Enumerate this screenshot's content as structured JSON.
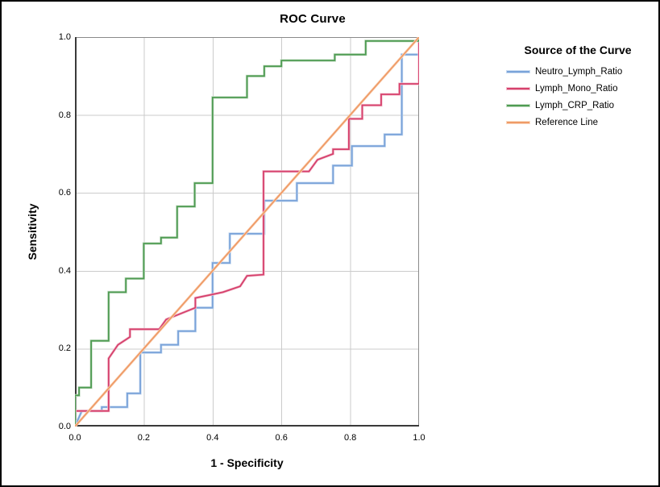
{
  "figure": {
    "title": "ROC Curve"
  },
  "axes": {
    "x": {
      "title": "1 - Specificity",
      "range": [
        0,
        1
      ],
      "ticks": [
        0,
        0.2,
        0.4,
        0.6,
        0.8,
        1
      ],
      "tick_labels": [
        "0.0",
        "0.2",
        "0.4",
        "0.6",
        "0.8",
        "1.0"
      ]
    },
    "y": {
      "title": "Sensitivity",
      "range": [
        0,
        1
      ],
      "ticks": [
        0,
        0.2,
        0.4,
        0.6,
        0.8,
        1
      ],
      "tick_labels": [
        "0.0",
        "0.2",
        "0.4",
        "0.6",
        "0.8",
        "1.0"
      ]
    }
  },
  "legend": {
    "title": "Source of the Curve"
  },
  "colors": {
    "background": "#ffffff",
    "outer_border": "#000000",
    "gridline": "#cbcbcb",
    "frame": "#8a8a8a",
    "axis": "#3a3a3a",
    "text": "#000000"
  },
  "chart_data": {
    "type": "line",
    "subtype": "roc-step-curves",
    "title": "ROC Curve",
    "xlabel": "1 - Specificity",
    "ylabel": "Sensitivity",
    "xlim": [
      0,
      1
    ],
    "ylim": [
      0,
      1
    ],
    "grid": true,
    "grid_interval": 0.2,
    "legend_position": "right",
    "series": [
      {
        "name": "Neutro_Lymph_Ratio",
        "color": "#7aa3d9",
        "halo": "#c7daf1",
        "points": [
          [
            0,
            0
          ],
          [
            0.02,
            0.04
          ],
          [
            0.078,
            0.04
          ],
          [
            0.078,
            0.05
          ],
          [
            0.152,
            0.05
          ],
          [
            0.152,
            0.085
          ],
          [
            0.19,
            0.085
          ],
          [
            0.19,
            0.19
          ],
          [
            0.25,
            0.19
          ],
          [
            0.25,
            0.21
          ],
          [
            0.3,
            0.21
          ],
          [
            0.3,
            0.245
          ],
          [
            0.35,
            0.245
          ],
          [
            0.35,
            0.305
          ],
          [
            0.4,
            0.305
          ],
          [
            0.4,
            0.42
          ],
          [
            0.45,
            0.42
          ],
          [
            0.45,
            0.495
          ],
          [
            0.55,
            0.495
          ],
          [
            0.55,
            0.58
          ],
          [
            0.645,
            0.58
          ],
          [
            0.645,
            0.625
          ],
          [
            0.75,
            0.625
          ],
          [
            0.75,
            0.67
          ],
          [
            0.805,
            0.67
          ],
          [
            0.805,
            0.72
          ],
          [
            0.9,
            0.72
          ],
          [
            0.9,
            0.75
          ],
          [
            0.95,
            0.75
          ],
          [
            0.95,
            0.955
          ],
          [
            1,
            0.955
          ],
          [
            1,
            1
          ]
        ]
      },
      {
        "name": "Lymph_Mono_Ratio",
        "color": "#d6406c",
        "halo": "#f2c1cf",
        "points": [
          [
            0,
            0
          ],
          [
            0,
            0.04
          ],
          [
            0.098,
            0.04
          ],
          [
            0.098,
            0.175
          ],
          [
            0.125,
            0.21
          ],
          [
            0.16,
            0.23
          ],
          [
            0.16,
            0.25
          ],
          [
            0.245,
            0.25
          ],
          [
            0.265,
            0.275
          ],
          [
            0.35,
            0.305
          ],
          [
            0.35,
            0.33
          ],
          [
            0.43,
            0.345
          ],
          [
            0.48,
            0.36
          ],
          [
            0.5,
            0.387
          ],
          [
            0.548,
            0.39
          ],
          [
            0.548,
            0.655
          ],
          [
            0.68,
            0.655
          ],
          [
            0.705,
            0.685
          ],
          [
            0.75,
            0.7
          ],
          [
            0.75,
            0.712
          ],
          [
            0.796,
            0.712
          ],
          [
            0.796,
            0.79
          ],
          [
            0.835,
            0.79
          ],
          [
            0.835,
            0.825
          ],
          [
            0.89,
            0.825
          ],
          [
            0.89,
            0.853
          ],
          [
            0.943,
            0.853
          ],
          [
            0.943,
            0.88
          ],
          [
            1,
            0.88
          ],
          [
            1,
            1
          ]
        ]
      },
      {
        "name": "Lymph_CRP_Ratio",
        "color": "#4e9b52",
        "halo": "#c4ddc4",
        "points": [
          [
            0,
            0
          ],
          [
            0,
            0.08
          ],
          [
            0.012,
            0.08
          ],
          [
            0.012,
            0.1
          ],
          [
            0.047,
            0.1
          ],
          [
            0.047,
            0.22
          ],
          [
            0.098,
            0.22
          ],
          [
            0.098,
            0.345
          ],
          [
            0.148,
            0.345
          ],
          [
            0.148,
            0.38
          ],
          [
            0.2,
            0.38
          ],
          [
            0.2,
            0.47
          ],
          [
            0.25,
            0.47
          ],
          [
            0.25,
            0.485
          ],
          [
            0.297,
            0.485
          ],
          [
            0.297,
            0.565
          ],
          [
            0.348,
            0.565
          ],
          [
            0.348,
            0.625
          ],
          [
            0.4,
            0.625
          ],
          [
            0.4,
            0.845
          ],
          [
            0.5,
            0.845
          ],
          [
            0.5,
            0.9
          ],
          [
            0.55,
            0.9
          ],
          [
            0.55,
            0.925
          ],
          [
            0.6,
            0.925
          ],
          [
            0.6,
            0.94
          ],
          [
            0.755,
            0.94
          ],
          [
            0.755,
            0.955
          ],
          [
            0.845,
            0.955
          ],
          [
            0.845,
            0.99
          ],
          [
            1,
            0.99
          ],
          [
            1,
            1
          ]
        ]
      },
      {
        "name": "Reference Line",
        "color": "#ef9a66",
        "halo": "#fad9c0",
        "points": [
          [
            0,
            0
          ],
          [
            1,
            1
          ]
        ]
      }
    ]
  }
}
